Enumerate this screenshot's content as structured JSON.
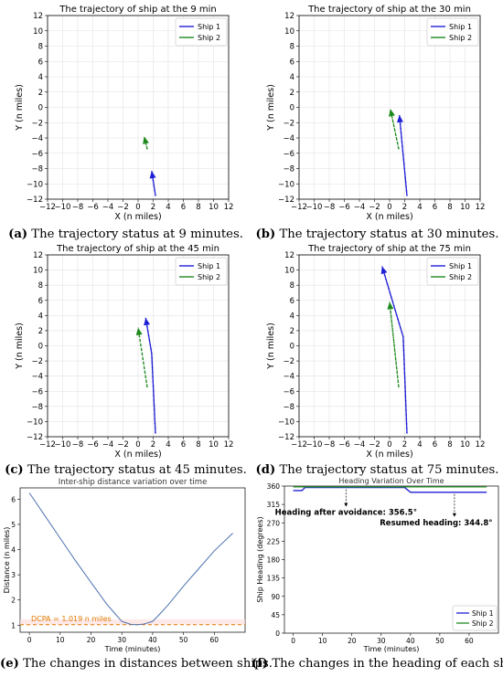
{
  "figure": {
    "captions": [
      {
        "letter": "(a)",
        "text": " The trajectory status at 9 minutes."
      },
      {
        "letter": "(b)",
        "text": " The trajectory status at 30 minutes."
      },
      {
        "letter": "(c)",
        "text": " The trajectory status at 45 minutes."
      },
      {
        "letter": "(d)",
        "text": " The trajectory status at 75 minutes."
      },
      {
        "letter": "(e)",
        "text": " The changes in distances between ships."
      },
      {
        "letter": "(f)",
        "text": " The changes in the heading of each ship."
      }
    ]
  },
  "chart_data": [
    {
      "type": "line",
      "title": "The trajectory of ship at the 9 min",
      "xlabel": "X (n miles)",
      "ylabel": "Y (n miles)",
      "xlim": [
        -12,
        12
      ],
      "ylim": [
        -12,
        12
      ],
      "xticks": [
        "−12",
        "−10",
        "−8",
        "−6",
        "−4",
        "−2",
        "0",
        "2",
        "4",
        "6",
        "8",
        "10",
        "12"
      ],
      "yticks": [
        "−12",
        "−10",
        "−8",
        "−6",
        "−4",
        "−2",
        "0",
        "2",
        "4",
        "6",
        "8",
        "10",
        "12"
      ],
      "grid": true,
      "legend_position": "top-right",
      "series": [
        {
          "name": "Ship 1",
          "color": "#1f1fd6",
          "x": [
            2.3,
            1.8
          ],
          "y": [
            -11.5,
            -8.3
          ]
        },
        {
          "name": "Ship 2",
          "color": "#1e8a1e",
          "x": [
            1.2,
            0.8
          ],
          "y": [
            -5.4,
            -3.8
          ]
        }
      ]
    },
    {
      "type": "line",
      "title": "The trajectory of ship at the 30 min",
      "xlabel": "X (n miles)",
      "ylabel": "Y (n miles)",
      "xlim": [
        -12,
        12
      ],
      "ylim": [
        -12,
        12
      ],
      "xticks": [
        "−12",
        "−10",
        "−8",
        "−6",
        "−4",
        "−2",
        "0",
        "2",
        "4",
        "6",
        "8",
        "10",
        "12"
      ],
      "yticks": [
        "−12",
        "−10",
        "−8",
        "−6",
        "−4",
        "−2",
        "0",
        "2",
        "4",
        "6",
        "8",
        "10",
        "12"
      ],
      "grid": true,
      "legend_position": "top-right",
      "series": [
        {
          "name": "Ship 1",
          "color": "#1f1fd6",
          "x": [
            2.3,
            1.3
          ],
          "y": [
            -11.5,
            -1.0
          ]
        },
        {
          "name": "Ship 2",
          "color": "#1e8a1e",
          "x": [
            1.2,
            0.1
          ],
          "y": [
            -5.4,
            -0.2
          ]
        }
      ]
    },
    {
      "type": "line",
      "title": "The trajectory of ship at the 45 min",
      "xlabel": "X (n miles)",
      "ylabel": "Y (n miles)",
      "xlim": [
        -12,
        12
      ],
      "ylim": [
        -12,
        12
      ],
      "xticks": [
        "−12",
        "−10",
        "−8",
        "−6",
        "−4",
        "−2",
        "0",
        "2",
        "4",
        "6",
        "8",
        "10",
        "12"
      ],
      "yticks": [
        "−12",
        "−10",
        "−8",
        "−6",
        "−4",
        "−2",
        "0",
        "2",
        "4",
        "6",
        "8",
        "10",
        "12"
      ],
      "grid": true,
      "legend_position": "top-right",
      "series": [
        {
          "name": "Ship 1",
          "color": "#1f1fd6",
          "x": [
            2.3,
            1.8,
            1.0
          ],
          "y": [
            -11.5,
            -1.0,
            3.7
          ]
        },
        {
          "name": "Ship 2",
          "color": "#1e8a1e",
          "x": [
            1.2,
            0.0
          ],
          "y": [
            -5.4,
            2.4
          ]
        }
      ]
    },
    {
      "type": "line",
      "title": "The trajectory of ship at the 75 min",
      "xlabel": "X (n miles)",
      "ylabel": "Y (n miles)",
      "xlim": [
        -12,
        12
      ],
      "ylim": [
        -12,
        12
      ],
      "xticks": [
        "−12",
        "−10",
        "−8",
        "−6",
        "−4",
        "−2",
        "0",
        "2",
        "4",
        "6",
        "8",
        "10",
        "12"
      ],
      "yticks": [
        "−12",
        "−10",
        "−8",
        "−6",
        "−4",
        "−2",
        "0",
        "2",
        "4",
        "6",
        "8",
        "10",
        "12"
      ],
      "grid": true,
      "legend_position": "top-right",
      "series": [
        {
          "name": "Ship 1",
          "color": "#1f1fd6",
          "x": [
            2.3,
            1.8,
            -1.0
          ],
          "y": [
            -11.5,
            1.2,
            10.5
          ]
        },
        {
          "name": "Ship 2",
          "color": "#1e8a1e",
          "x": [
            1.2,
            0.0
          ],
          "y": [
            -5.4,
            5.8
          ]
        }
      ]
    },
    {
      "type": "line",
      "title": "Inter-ship distance variation over time",
      "xlabel": "Time (minutes)",
      "ylabel": "Distance (n miles)",
      "xlim": [
        -3,
        70
      ],
      "ylim": [
        0.72,
        6.45
      ],
      "xticks": [
        "0",
        "10",
        "20",
        "30",
        "40",
        "50",
        "60"
      ],
      "yticks": [
        "1",
        "2",
        "3",
        "4",
        "5",
        "6"
      ],
      "grid": false,
      "series": [
        {
          "name": "",
          "color": "#4c72b0",
          "x": [
            0,
            5,
            10,
            15,
            20,
            25,
            30,
            33,
            35,
            37,
            40,
            42,
            45,
            50,
            55,
            60,
            66
          ],
          "y": [
            6.25,
            5.35,
            4.45,
            3.55,
            2.7,
            1.85,
            1.15,
            1.03,
            1.019,
            1.04,
            1.15,
            1.4,
            1.8,
            2.55,
            3.25,
            3.95,
            4.65
          ]
        }
      ],
      "annotations": [
        {
          "text": "DCPA = 1.019 n miles",
          "y": 1.019,
          "color": "#e07b00",
          "line_style": "dashed"
        }
      ]
    },
    {
      "type": "line",
      "title": "Heading Variation Over Time",
      "xlabel": "Time (minutes)",
      "ylabel": "Ship Heading (degrees)",
      "xlim": [
        -3,
        70
      ],
      "ylim": [
        0,
        360
      ],
      "xticks": [
        "0",
        "10",
        "20",
        "30",
        "40",
        "50",
        "60"
      ],
      "yticks": [
        "0",
        "45",
        "90",
        "135",
        "180",
        "225",
        "270",
        "315",
        "360"
      ],
      "grid": false,
      "legend_position": "bottom-right",
      "series": [
        {
          "name": "Ship 1",
          "color": "#1f1fd6",
          "x": [
            0,
            3,
            4,
            38,
            40,
            66
          ],
          "y": [
            349,
            349,
            356.5,
            356.5,
            344.8,
            344.8
          ]
        },
        {
          "name": "Ship 2",
          "color": "#1e8a1e",
          "x": [
            0,
            66
          ],
          "y": [
            358,
            358
          ]
        }
      ],
      "annotations": [
        {
          "text": "Heading after avoidance: 356.5°",
          "x": 18,
          "y": 356.5
        },
        {
          "text": "Resumed heading: 344.8°",
          "x": 55,
          "y": 344.8
        }
      ]
    }
  ]
}
